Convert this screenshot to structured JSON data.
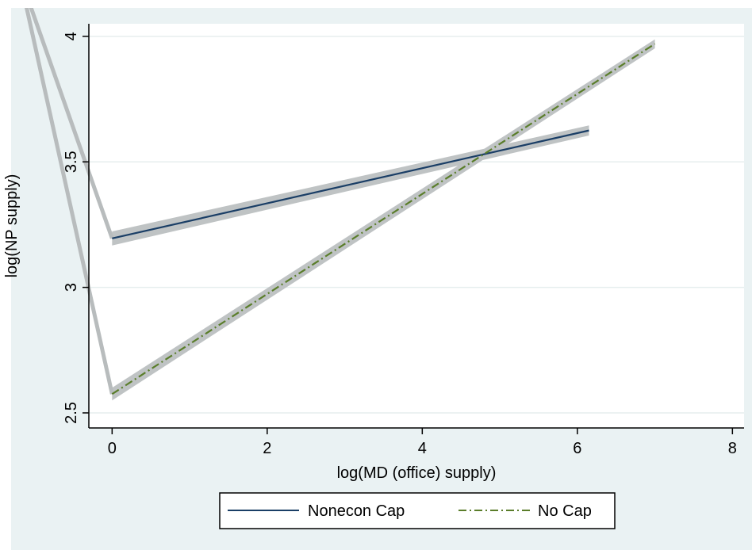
{
  "chart_data": {
    "type": "line",
    "xlabel": "log(MD (office) supply)",
    "ylabel": "log(NP supply)",
    "xlim": [
      -0.3,
      8.15
    ],
    "ylim": [
      2.44,
      4.05
    ],
    "xticks": [
      0,
      2,
      4,
      6,
      8
    ],
    "yticks": [
      2.5,
      3,
      3.5,
      4
    ],
    "xtick_labels": [
      "0",
      "2",
      "4",
      "6",
      "8"
    ],
    "ytick_labels": [
      "2.5",
      "3",
      "3.5",
      "4"
    ],
    "grid": "horizontal",
    "legend_position": "bottom",
    "series": [
      {
        "name": "Nonecon Cap",
        "color": "#1a3e66",
        "style": "solid",
        "x": [
          0,
          6.15
        ],
        "y": [
          3.195,
          3.625
        ],
        "ci_halfwidth": 0.02
      },
      {
        "name": "No Cap",
        "color": "#5a7d2a",
        "style": "dash-dot",
        "x": [
          0,
          7.0
        ],
        "y": [
          2.575,
          3.97
        ],
        "ci_halfwidth": 0.018
      }
    ],
    "artifacts": [
      {
        "x": [
          -1.2,
          0
        ],
        "y": [
          4.25,
          3.195
        ]
      },
      {
        "x": [
          -1.2,
          0
        ],
        "y": [
          4.25,
          2.575
        ]
      }
    ]
  }
}
